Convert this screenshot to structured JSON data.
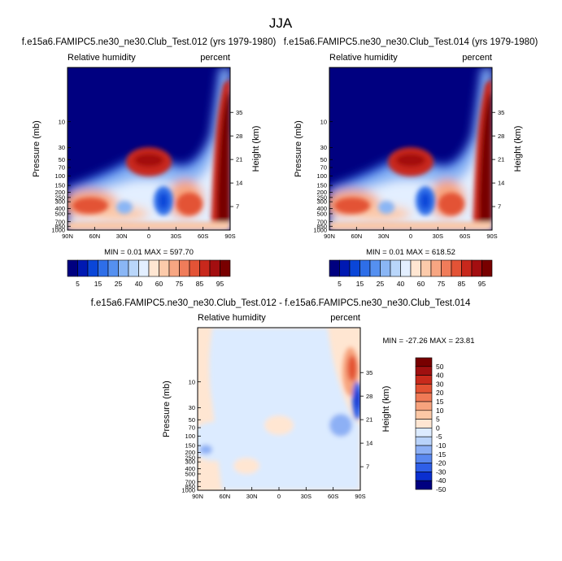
{
  "figure_title": "JJA",
  "colors": {
    "abs_scale": [
      "#000080",
      "#0019b2",
      "#0a46d8",
      "#2e6ee8",
      "#5590f0",
      "#8ab6f5",
      "#b9d6fa",
      "#e3efff",
      "#ffe6d2",
      "#fccaaa",
      "#f7a682",
      "#f07c5a",
      "#e35336",
      "#c8281c",
      "#a30e10",
      "#780000"
    ],
    "diff_scale": [
      "#000080",
      "#0a2fd0",
      "#2f5fe8",
      "#5a88f0",
      "#8db0f5",
      "#b9d3fa",
      "#dcebff",
      "#ffe6d2",
      "#fcc8a5",
      "#f7a37d",
      "#f07a56",
      "#e35233",
      "#c82a1c",
      "#a01010",
      "#780000"
    ],
    "frame": "#000000"
  },
  "chart_data": [
    {
      "type": "heatmap",
      "title": "f.e15a6.FAMIPC5.ne30_ne30.Club_Test.012 (yrs 1979-1980)",
      "left_label": "Relative humidity",
      "right_label": "percent",
      "xlabel": "",
      "ylabel": "Pressure (mb)",
      "ylabel_right": "Height (km)",
      "x_ticks": [
        "90N",
        "60N",
        "30N",
        "0",
        "30S",
        "60S",
        "90S"
      ],
      "x_range": [
        90,
        -90
      ],
      "y_ticks": [
        "10",
        "30",
        "50",
        "70",
        "100",
        "150",
        "200",
        "250",
        "300",
        "400",
        "500",
        "700",
        "850",
        "1000"
      ],
      "y_ticks_right": [
        "35",
        "28",
        "21",
        "14",
        "7"
      ],
      "y_range": [
        1,
        1000
      ],
      "y_scale": "log",
      "stats": "MIN =  0.01   MAX = 597.70",
      "min": 0.01,
      "max": 597.7,
      "colorbar_labels": [
        "5",
        "15",
        "25",
        "40",
        "60",
        "75",
        "85",
        "95"
      ],
      "colorbar_levels": [
        5,
        10,
        15,
        20,
        25,
        30,
        40,
        50,
        60,
        65,
        75,
        80,
        85,
        90,
        95
      ]
    },
    {
      "type": "heatmap",
      "title": "f.e15a6.FAMIPC5.ne30_ne30.Club_Test.014 (yrs 1979-1980)",
      "left_label": "Relative humidity",
      "right_label": "percent",
      "xlabel": "",
      "ylabel": "Pressure (mb)",
      "ylabel_right": "Height (km)",
      "x_ticks": [
        "90N",
        "60N",
        "30N",
        "0",
        "30S",
        "60S",
        "90S"
      ],
      "x_range": [
        90,
        -90
      ],
      "y_ticks": [
        "10",
        "30",
        "50",
        "70",
        "100",
        "150",
        "200",
        "250",
        "300",
        "400",
        "500",
        "700",
        "850",
        "1000"
      ],
      "y_ticks_right": [
        "35",
        "28",
        "21",
        "14",
        "7"
      ],
      "y_range": [
        1,
        1000
      ],
      "y_scale": "log",
      "stats": "MIN =  0.01   MAX = 618.52",
      "min": 0.01,
      "max": 618.52,
      "colorbar_labels": [
        "5",
        "15",
        "25",
        "40",
        "60",
        "75",
        "85",
        "95"
      ],
      "colorbar_levels": [
        5,
        10,
        15,
        20,
        25,
        30,
        40,
        50,
        60,
        65,
        75,
        80,
        85,
        90,
        95
      ]
    },
    {
      "type": "heatmap",
      "title": "f.e15a6.FAMIPC5.ne30_ne30.Club_Test.012 - f.e15a6.FAMIPC5.ne30_ne30.Club_Test.014",
      "left_label": "Relative humidity",
      "right_label": "percent",
      "xlabel": "",
      "ylabel": "Pressure (mb)",
      "ylabel_right": "Height (km)",
      "x_ticks": [
        "90N",
        "60N",
        "30N",
        "0",
        "30S",
        "60S",
        "90S"
      ],
      "x_range": [
        90,
        -90
      ],
      "y_ticks": [
        "10",
        "30",
        "50",
        "70",
        "100",
        "150",
        "200",
        "250",
        "300",
        "400",
        "500",
        "700",
        "850",
        "1000"
      ],
      "y_ticks_right": [
        "35",
        "28",
        "21",
        "14",
        "7"
      ],
      "y_range": [
        1,
        1000
      ],
      "y_scale": "log",
      "stats": "MIN = -27.26   MAX =  23.81",
      "min": -27.26,
      "max": 23.81,
      "colorbar_labels": [
        "50",
        "40",
        "30",
        "20",
        "15",
        "10",
        "5",
        "0",
        "-5",
        "-10",
        "-15",
        "-20",
        "-30",
        "-40",
        "-50"
      ],
      "colorbar_levels": [
        50,
        40,
        30,
        20,
        15,
        10,
        5,
        0,
        -5,
        -10,
        -15,
        -20,
        -30,
        -40,
        -50
      ]
    }
  ]
}
